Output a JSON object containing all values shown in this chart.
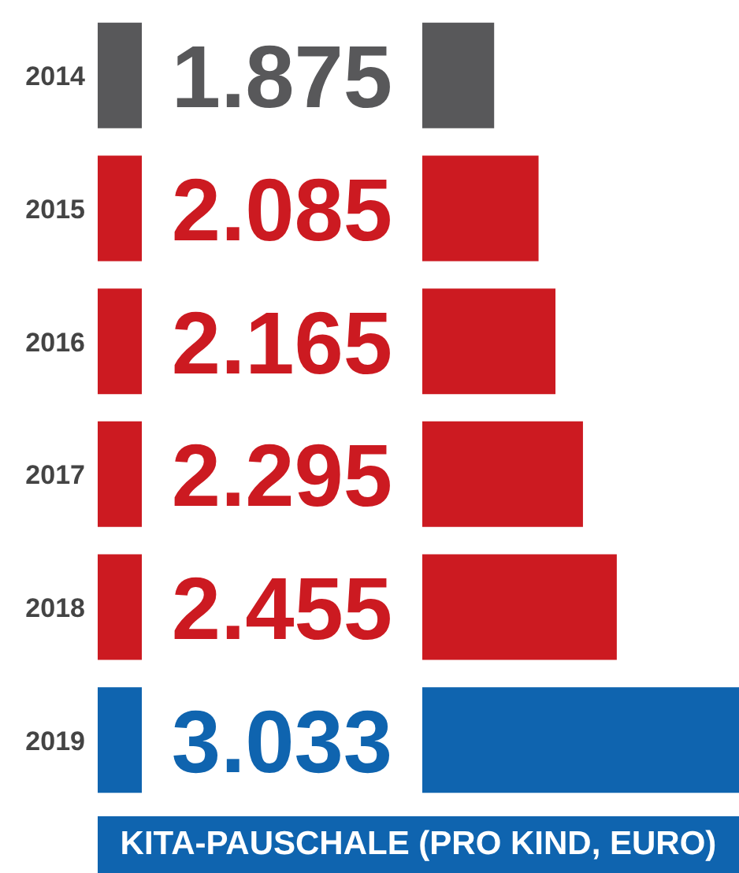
{
  "chart_data": {
    "type": "bar",
    "orientation": "horizontal",
    "xlabel": "KITA-PAUSCHALE (PRO KIND, EURO)",
    "categories": [
      "2014",
      "2015",
      "2016",
      "2017",
      "2018",
      "2019"
    ],
    "values": [
      1875,
      2085,
      2165,
      2295,
      2455,
      3033
    ],
    "colors": [
      "#58585a",
      "#cc1a21",
      "#cc1a21",
      "#cc1a21",
      "#cc1a21",
      "#0f64af"
    ],
    "value_labels": [
      "1.875",
      "2.085",
      "2.165",
      "2.295",
      "2.455",
      "3.033"
    ]
  }
}
